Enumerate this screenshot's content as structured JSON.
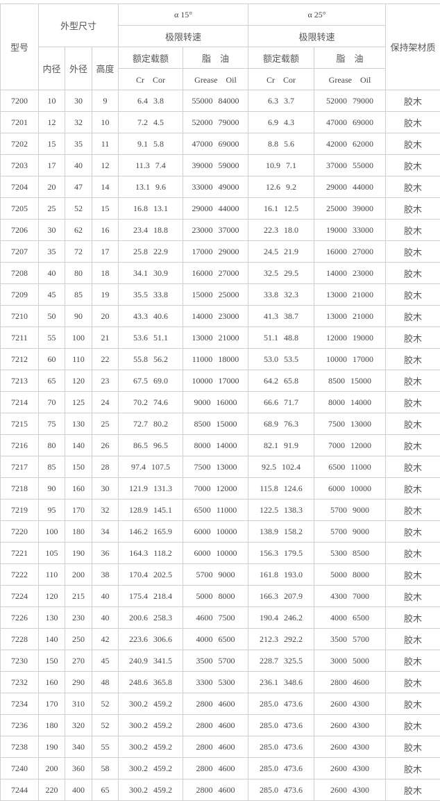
{
  "header": {
    "model": "型号",
    "dimensions": "外型尺寸",
    "inner_d": "内径",
    "outer_d": "外径",
    "height": "高度",
    "angle15": "α 15°",
    "angle25": "α 25°",
    "speed_limit": "极限转速",
    "rated_load": "额定载额",
    "grease_oil_zh": "脂　油",
    "cr_cor": "Cr　Cor",
    "grease_oil_en": "Grease　Oil",
    "cage_material": "保持架材质"
  },
  "rows": [
    [
      "7200",
      "10",
      "30",
      "9",
      "6.4",
      "3.8",
      "55000",
      "84000",
      "6.3",
      "3.7",
      "52000",
      "79000",
      "胶木"
    ],
    [
      "7201",
      "12",
      "32",
      "10",
      "7.2",
      "4.5",
      "52000",
      "79000",
      "6.9",
      "4.3",
      "47000",
      "69000",
      "胶木"
    ],
    [
      "7202",
      "15",
      "35",
      "11",
      "9.1",
      "5.8",
      "47000",
      "69000",
      "8.8",
      "5.6",
      "42000",
      "62000",
      "胶木"
    ],
    [
      "7203",
      "17",
      "40",
      "12",
      "11.3",
      "7.4",
      "39000",
      "59000",
      "10.9",
      "7.1",
      "37000",
      "55000",
      "胶木"
    ],
    [
      "7204",
      "20",
      "47",
      "14",
      "13.1",
      "9.6",
      "33000",
      "49000",
      "12.6",
      "9.2",
      "29000",
      "44000",
      "胶木"
    ],
    [
      "7205",
      "25",
      "52",
      "15",
      "16.8",
      "13.1",
      "29000",
      "44000",
      "16.1",
      "12.5",
      "25000",
      "39000",
      "胶木"
    ],
    [
      "7206",
      "30",
      "62",
      "16",
      "23.4",
      "18.8",
      "23000",
      "37000",
      "22.3",
      "18.0",
      "19000",
      "33000",
      "胶木"
    ],
    [
      "7207",
      "35",
      "72",
      "17",
      "25.8",
      "22.9",
      "17000",
      "29000",
      "24.5",
      "21.9",
      "16000",
      "27000",
      "胶木"
    ],
    [
      "7208",
      "40",
      "80",
      "18",
      "34.1",
      "30.9",
      "16000",
      "27000",
      "32.5",
      "29.5",
      "14000",
      "23000",
      "胶木"
    ],
    [
      "7209",
      "45",
      "85",
      "19",
      "35.5",
      "33.8",
      "15000",
      "25000",
      "33.8",
      "32.3",
      "13000",
      "21000",
      "胶木"
    ],
    [
      "7210",
      "50",
      "90",
      "20",
      "43.3",
      "40.6",
      "14000",
      "23000",
      "41.3",
      "38.7",
      "13000",
      "21000",
      "胶木"
    ],
    [
      "7211",
      "55",
      "100",
      "21",
      "53.6",
      "51.1",
      "13000",
      "21000",
      "51.1",
      "48.8",
      "12000",
      "19000",
      "胶木"
    ],
    [
      "7212",
      "60",
      "110",
      "22",
      "55.8",
      "56.2",
      "11000",
      "18000",
      "53.0",
      "53.5",
      "10000",
      "17000",
      "胶木"
    ],
    [
      "7213",
      "65",
      "120",
      "23",
      "67.5",
      "69.0",
      "10000",
      "17000",
      "64.2",
      "65.8",
      "8500",
      "15000",
      "胶木"
    ],
    [
      "7214",
      "70",
      "125",
      "24",
      "70.2",
      "74.6",
      "9000",
      "16000",
      "66.6",
      "71.7",
      "8000",
      "14000",
      "胶木"
    ],
    [
      "7215",
      "75",
      "130",
      "25",
      "72.7",
      "80.2",
      "8500",
      "15000",
      "68.9",
      "76.3",
      "7500",
      "13000",
      "胶木"
    ],
    [
      "7216",
      "80",
      "140",
      "26",
      "86.5",
      "96.5",
      "8000",
      "14000",
      "82.1",
      "91.9",
      "7000",
      "12000",
      "胶木"
    ],
    [
      "7217",
      "85",
      "150",
      "28",
      "97.4",
      "107.5",
      "7500",
      "13000",
      "92.5",
      "102.4",
      "6500",
      "11000",
      "胶木"
    ],
    [
      "7218",
      "90",
      "160",
      "30",
      "121.9",
      "131.3",
      "7000",
      "12000",
      "115.8",
      "124.6",
      "6000",
      "10000",
      "胶木"
    ],
    [
      "7219",
      "95",
      "170",
      "32",
      "128.9",
      "145.1",
      "6500",
      "11000",
      "122.5",
      "138.3",
      "5700",
      "9000",
      "胶木"
    ],
    [
      "7220",
      "100",
      "180",
      "34",
      "146.2",
      "165.9",
      "6000",
      "10000",
      "138.9",
      "158.2",
      "5700",
      "9000",
      "胶木"
    ],
    [
      "7221",
      "105",
      "190",
      "36",
      "164.3",
      "118.2",
      "6000",
      "10000",
      "156.3",
      "179.5",
      "5300",
      "8500",
      "胶木"
    ],
    [
      "7222",
      "110",
      "200",
      "38",
      "170.4",
      "202.5",
      "5700",
      "9000",
      "161.8",
      "193.0",
      "5000",
      "8000",
      "胶木"
    ],
    [
      "7224",
      "120",
      "215",
      "40",
      "175.4",
      "218.4",
      "5000",
      "8000",
      "166.3",
      "207.9",
      "4300",
      "7000",
      "胶木"
    ],
    [
      "7226",
      "130",
      "230",
      "40",
      "200.6",
      "258.3",
      "4600",
      "7500",
      "190.4",
      "246.2",
      "4000",
      "6500",
      "胶木"
    ],
    [
      "7228",
      "140",
      "250",
      "42",
      "223.6",
      "306.6",
      "4000",
      "6500",
      "212.3",
      "292.2",
      "3500",
      "5700",
      "胶木"
    ],
    [
      "7230",
      "150",
      "270",
      "45",
      "240.9",
      "341.5",
      "3500",
      "5700",
      "228.7",
      "325.5",
      "3000",
      "5000",
      "胶木"
    ],
    [
      "7232",
      "160",
      "290",
      "48",
      "248.6",
      "365.8",
      "3300",
      "5300",
      "236.1",
      "348.6",
      "2800",
      "4600",
      "胶木"
    ],
    [
      "7234",
      "170",
      "310",
      "52",
      "300.2",
      "459.2",
      "2800",
      "4600",
      "285.0",
      "473.6",
      "2600",
      "4300",
      "胶木"
    ],
    [
      "7236",
      "180",
      "320",
      "52",
      "300.2",
      "459.2",
      "2800",
      "4600",
      "285.0",
      "473.6",
      "2600",
      "4300",
      "胶木"
    ],
    [
      "7238",
      "190",
      "340",
      "55",
      "300.2",
      "459.2",
      "2800",
      "4600",
      "285.0",
      "473.6",
      "2600",
      "4300",
      "胶木"
    ],
    [
      "7240",
      "200",
      "360",
      "58",
      "300.2",
      "459.2",
      "2800",
      "4600",
      "285.0",
      "473.6",
      "2600",
      "4300",
      "胶木"
    ],
    [
      "7244",
      "220",
      "400",
      "65",
      "300.2",
      "459.2",
      "2800",
      "4600",
      "285.0",
      "473.6",
      "2600",
      "4300",
      "胶木"
    ]
  ]
}
